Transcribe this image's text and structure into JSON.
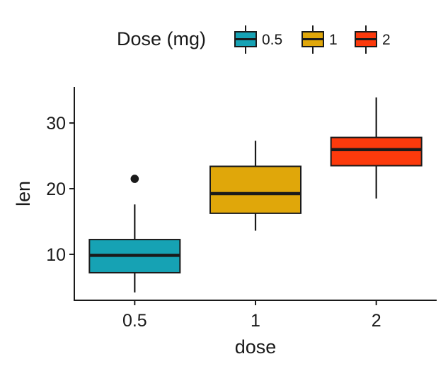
{
  "chart_data": {
    "type": "boxplot",
    "xlabel": "dose",
    "ylabel": "len",
    "categories": [
      "0.5",
      "1",
      "2"
    ],
    "ylim": [
      3,
      35.5
    ],
    "yticks": [
      10,
      20,
      30
    ],
    "grid": false,
    "legend": {
      "title": "Dose (mg)",
      "placement": "top",
      "entries": [
        "0.5",
        "1",
        "2"
      ]
    },
    "boxes": [
      {
        "category": "0.5",
        "whisker_low": 4.2,
        "q1": 7.2,
        "median": 9.85,
        "q3": 12.25,
        "whisker_high": 17.6,
        "outliers": [
          21.5
        ],
        "color": "#16A2B4"
      },
      {
        "category": "1",
        "whisker_low": 13.6,
        "q1": 16.25,
        "median": 19.25,
        "q3": 23.4,
        "whisker_high": 27.3,
        "outliers": [],
        "color": "#E0A70A"
      },
      {
        "category": "2",
        "whisker_low": 18.5,
        "q1": 23.5,
        "median": 25.95,
        "q3": 27.8,
        "whisker_high": 33.9,
        "outliers": [],
        "color": "#FC3A0C"
      }
    ]
  }
}
